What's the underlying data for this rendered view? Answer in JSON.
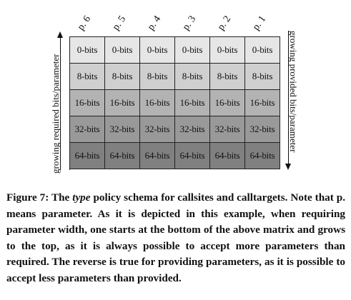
{
  "figure": {
    "column_headers": [
      "p. 6",
      "p. 5",
      "p. 4",
      "p. 3",
      "p. 2",
      "p. 1"
    ],
    "rows": [
      {
        "label": "0-bits",
        "color": "#e6e6e6"
      },
      {
        "label": "8-bits",
        "color": "#cfcfcf"
      },
      {
        "label": "16-bits",
        "color": "#b3b3b3"
      },
      {
        "label": "32-bits",
        "color": "#999999"
      },
      {
        "label": "64-bits",
        "color": "#808080"
      }
    ],
    "left_label": "growing required bits/parameter",
    "right_label": "growing provided bits/parameter"
  },
  "caption": {
    "prefix": "Figure 7: The ",
    "emphasis": "type",
    "suffix": " policy schema for callsites and calltargets. Note that p. means parameter. As it is depicted in this ex­ample, when requiring parameter width, one starts at the bottom of the above matrix and grows to the top, as it is al­ways possible to accept more parameters than required. The reverse is true for providing parameters, as it is possible to accept less parameters than provided."
  }
}
